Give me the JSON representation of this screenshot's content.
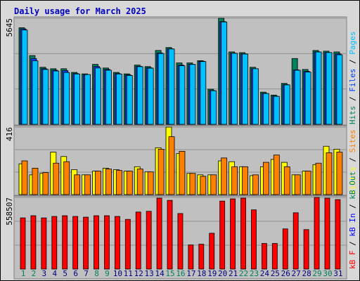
{
  "chart_data": [
    {
      "type": "bar",
      "title": "Daily usage for March 2025",
      "ylim": [
        0,
        5645
      ],
      "yticks": [
        5645
      ],
      "legend_separator": "/",
      "series": [
        {
          "name": "Hits",
          "color": "#00805c",
          "values": [
            5139,
            3659,
            3037,
            2959,
            2959,
            2764,
            2686,
            3192,
            2998,
            2764,
            2686,
            3153,
            3075,
            3932,
            4088,
            3270,
            3270,
            3387,
            1869,
            5645,
            3854,
            3815,
            3037,
            1713,
            1557,
            2180,
            3504,
            2920,
            3932,
            3893,
            3854
          ]
        },
        {
          "name": "Files",
          "color": "#0040ff",
          "values": [
            5080,
            3500,
            2960,
            2880,
            2860,
            2700,
            2640,
            3080,
            2920,
            2700,
            2630,
            3090,
            3010,
            3800,
            4020,
            3160,
            3200,
            3360,
            1800,
            5470,
            3790,
            3750,
            2960,
            1650,
            1500,
            2110,
            2900,
            2820,
            3860,
            3820,
            3750
          ]
        },
        {
          "name": "Pages",
          "color": "#00c0ff",
          "values": [
            5020,
            3380,
            2920,
            2840,
            2760,
            2680,
            2650,
            3000,
            2880,
            2680,
            2600,
            3070,
            2990,
            3770,
            4010,
            3120,
            3190,
            3340,
            1790,
            5450,
            3780,
            3740,
            2960,
            1640,
            1490,
            2100,
            2880,
            2780,
            3850,
            3820,
            3700
          ]
        }
      ]
    },
    {
      "type": "bar",
      "ylim": [
        0,
        416
      ],
      "yticks": [
        416
      ],
      "legend_separator": "/",
      "series": [
        {
          "name": "Visits",
          "color": "#ffff00",
          "values": [
            190,
            122,
            131,
            262,
            235,
            154,
            122,
            145,
            163,
            154,
            145,
            172,
            140,
            289,
            416,
            253,
            131,
            122,
            122,
            208,
            203,
            172,
            117,
            172,
            217,
            199,
            122,
            145,
            185,
            298,
            280
          ]
        },
        {
          "name": "Sites",
          "color": "#ff8000",
          "values": [
            208,
            163,
            136,
            194,
            203,
            122,
            122,
            145,
            158,
            149,
            145,
            158,
            140,
            280,
            357,
            267,
            131,
            113,
            122,
            226,
            172,
            172,
            122,
            199,
            244,
            172,
            122,
            145,
            194,
            258,
            262
          ]
        }
      ]
    },
    {
      "type": "bar",
      "ylim": [
        0,
        558507
      ],
      "yticks": [
        558507
      ],
      "legend_separator": "/",
      "categories": [
        1,
        2,
        3,
        4,
        5,
        6,
        7,
        8,
        9,
        10,
        11,
        12,
        13,
        14,
        15,
        16,
        17,
        18,
        19,
        20,
        21,
        22,
        23,
        24,
        25,
        26,
        27,
        28,
        29,
        30,
        31
      ],
      "category_colors": [
        "#00805c",
        "#00805c",
        "#000080",
        "#000080",
        "#000080",
        "#000080",
        "#000080",
        "#00805c",
        "#00805c",
        "#000080",
        "#000080",
        "#000080",
        "#000080",
        "#000080",
        "#00805c",
        "#00805c",
        "#000080",
        "#000080",
        "#000080",
        "#000080",
        "#000080",
        "#00805c",
        "#00805c",
        "#000080",
        "#000080",
        "#000080",
        "#000080",
        "#000080",
        "#00805c",
        "#00805c",
        "#000080"
      ],
      "series": [
        {
          "name": "kB F",
          "color": "#ff0000",
          "values": [
            398900,
            416000,
            398900,
            410300,
            416000,
            410300,
            404600,
            416000,
            416000,
            410300,
            387500,
            444500,
            450200,
            552800,
            535700,
            433100,
            188100,
            193800,
            279300,
            530000,
            547100,
            552800,
            461600,
            199500,
            199500,
            313400,
            438800,
            307700,
            558507,
            552800,
            541400
          ]
        }
      ],
      "legend_extra": [
        {
          "name": "kB In",
          "color": "#0000ff"
        },
        {
          "name": "kB Out",
          "color": "#00805c"
        }
      ]
    }
  ]
}
